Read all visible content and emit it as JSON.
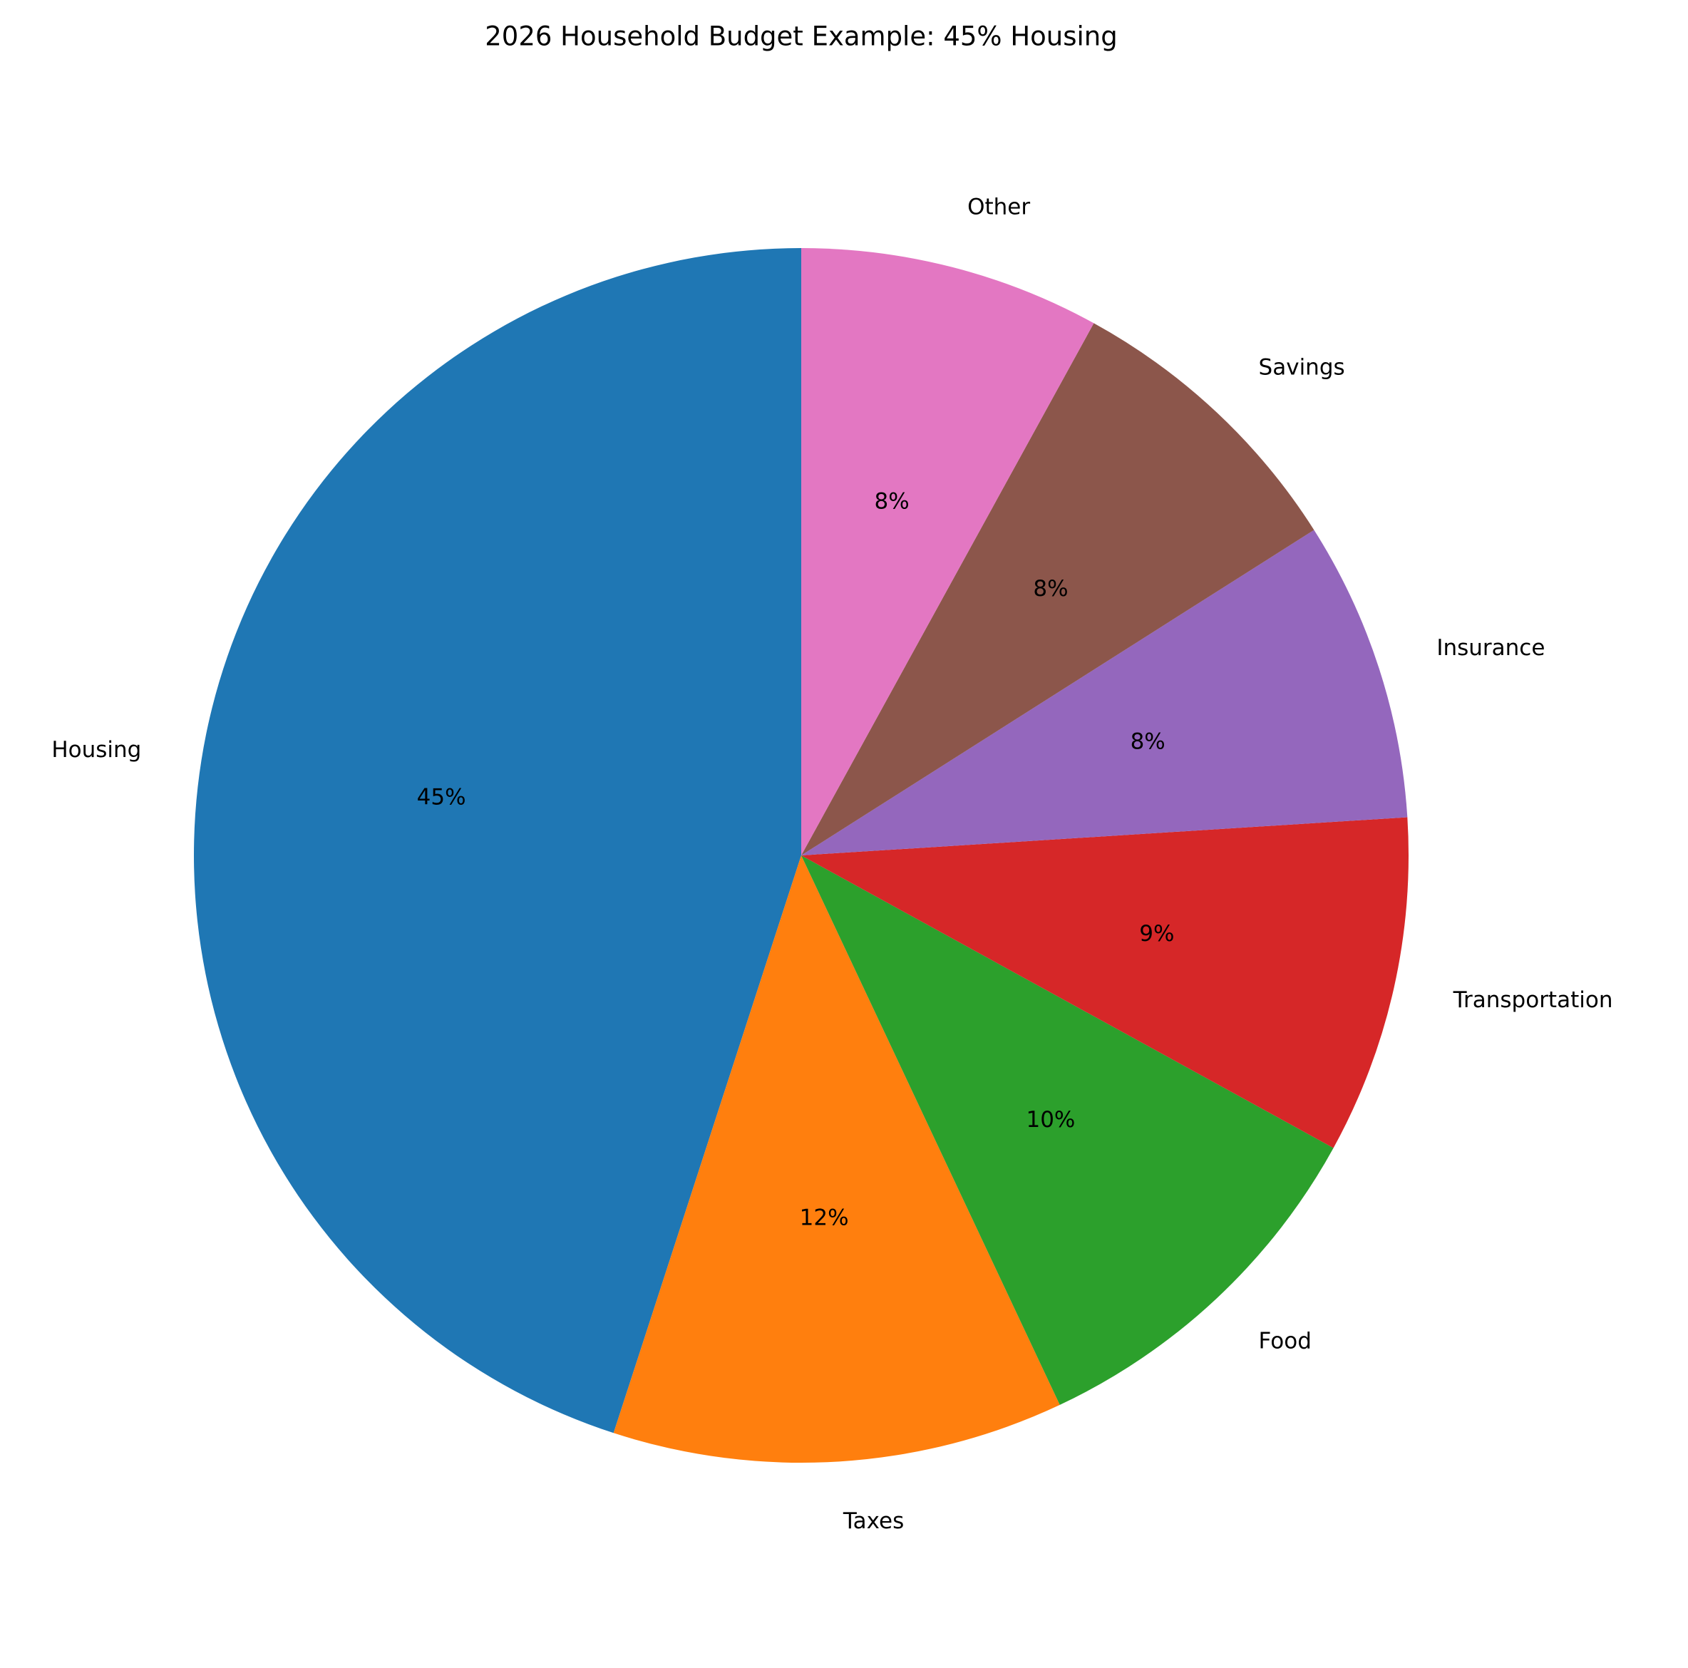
{
  "chart_data": {
    "type": "pie",
    "title": "2026 Household Budget Example: 45% Housing",
    "categories": [
      "Housing",
      "Taxes",
      "Food",
      "Transportation",
      "Insurance",
      "Savings",
      "Other"
    ],
    "values": [
      45,
      12,
      10,
      9,
      8,
      8,
      8
    ],
    "value_labels": [
      "45%",
      "12%",
      "10%",
      "9%",
      "8%",
      "8%",
      "8%"
    ],
    "colors": [
      "#1f77b4",
      "#ff7f0e",
      "#2ca02c",
      "#d62728",
      "#9467bd",
      "#8c564b",
      "#e377c2"
    ]
  }
}
